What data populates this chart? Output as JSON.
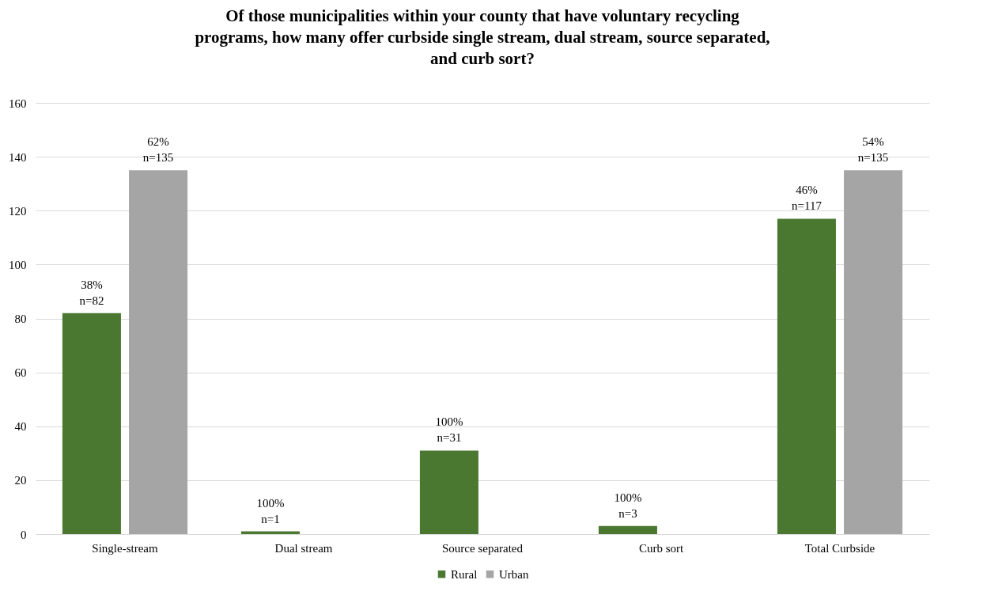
{
  "chart_data": {
    "type": "bar",
    "title": "Of those municipalities within your county that have voluntary recycling programs, how many offer curbside single stream, dual stream, source separated, and curb sort?",
    "categories": [
      "Single-stream",
      "Dual stream",
      "Source separated",
      "Curb sort",
      "Total Curbside"
    ],
    "series": [
      {
        "name": "Rural",
        "color": "#4a7831",
        "values": [
          82,
          1,
          31,
          3,
          117
        ],
        "value_labels": [
          "38%\nn=82",
          "100%\nn=1",
          "100%\nn=31",
          "100%\nn=3",
          "46%\nn=117"
        ]
      },
      {
        "name": "Urban",
        "color": "#a5a5a5",
        "values": [
          135,
          null,
          null,
          null,
          135
        ],
        "value_labels": [
          "62%\nn=135",
          null,
          null,
          null,
          "54%\nn=135"
        ]
      }
    ],
    "ylim": [
      0,
      160
    ],
    "yticks": [
      0,
      20,
      40,
      60,
      80,
      100,
      120,
      140,
      160
    ],
    "grid": "y",
    "legend": "bottom"
  }
}
